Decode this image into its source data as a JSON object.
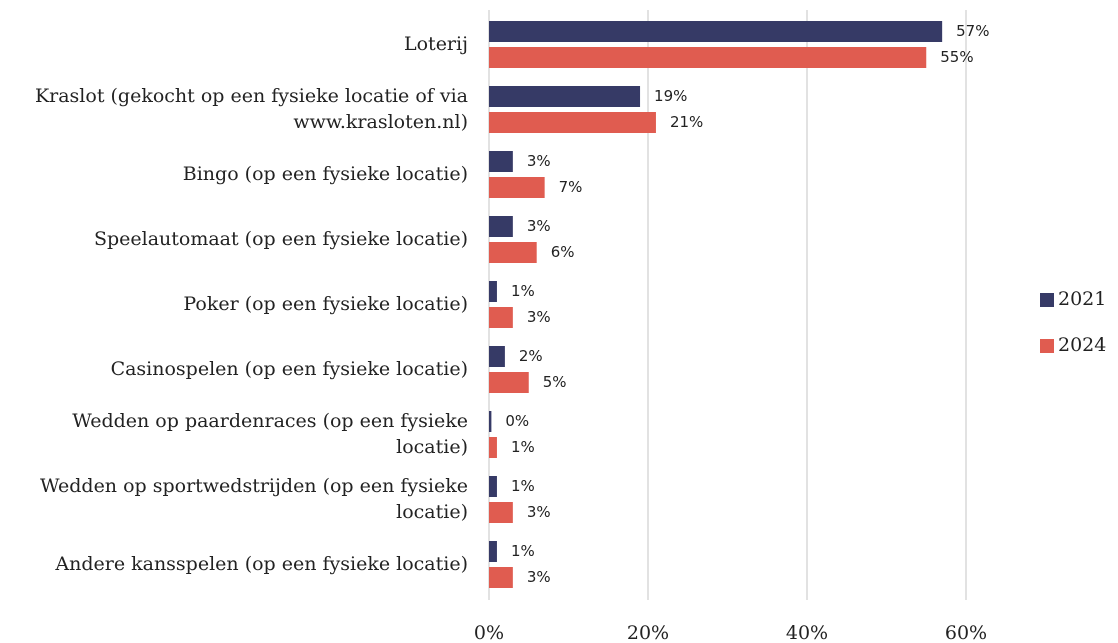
{
  "chart_data": {
    "type": "bar",
    "orientation": "horizontal",
    "categories": [
      "Loterij",
      "Kraslot (gekocht op een fysieke locatie of via www.krasloten.nl)",
      "Bingo (op een fysieke locatie)",
      "Speelautomaat (op een fysieke locatie)",
      "Poker (op een fysieke locatie)",
      "Casinospelen (op een fysieke locatie)",
      "Wedden op paardenraces (op een fysieke locatie)",
      "Wedden op sportwedstrijden (op een fysieke locatie)",
      "Andere kansspelen (op een fysieke locatie)"
    ],
    "series": [
      {
        "name": "2021",
        "color": "#363a66",
        "values": [
          57,
          19,
          3,
          3,
          1,
          2,
          0.3,
          1,
          1
        ],
        "value_labels": [
          "57%",
          "19%",
          "3%",
          "3%",
          "1%",
          "2%",
          "0%",
          "1%",
          "1%"
        ]
      },
      {
        "name": "2024",
        "color": "#e05c50",
        "values": [
          55,
          21,
          7,
          6,
          3,
          5,
          1,
          3,
          3
        ],
        "value_labels": [
          "55%",
          "21%",
          "7%",
          "6%",
          "3%",
          "5%",
          "1%",
          "3%",
          "3%"
        ]
      }
    ],
    "xlim": [
      0,
      60
    ],
    "xticks": [
      {
        "value": 0,
        "label": "0%"
      },
      {
        "value": 20,
        "label": "20%"
      },
      {
        "value": 40,
        "label": "40%"
      },
      {
        "value": 60,
        "label": "60%"
      }
    ],
    "grid": true,
    "legend": "right"
  }
}
